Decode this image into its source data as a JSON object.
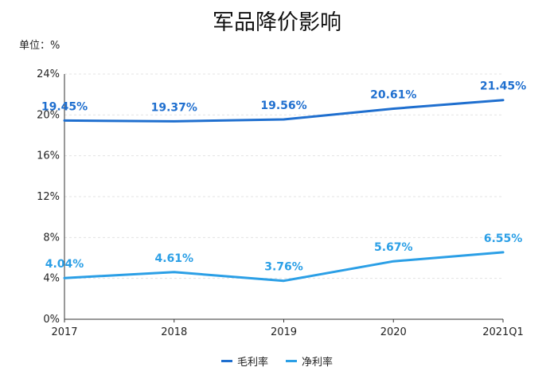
{
  "chart_data": {
    "type": "line",
    "title": "军品降价影响",
    "unit_label": "单位：%",
    "categories": [
      "2017",
      "2018",
      "2019",
      "2020",
      "2021Q1"
    ],
    "ylim": [
      0,
      24
    ],
    "yticks": [
      0,
      4,
      8,
      12,
      16,
      20,
      24
    ],
    "ytick_labels": [
      "0%",
      "4%",
      "8%",
      "12%",
      "16%",
      "20%",
      "24%"
    ],
    "grid": true,
    "legend_position": "bottom-center",
    "series": [
      {
        "name": "毛利率",
        "color": "#1f6fcf",
        "values": [
          19.45,
          19.37,
          19.56,
          20.61,
          21.45
        ],
        "labels": [
          "19.45%",
          "19.37%",
          "19.56%",
          "20.61%",
          "21.45%"
        ]
      },
      {
        "name": "净利率",
        "color": "#2b9fe6",
        "values": [
          4.04,
          4.61,
          3.76,
          5.67,
          6.55
        ],
        "labels": [
          "4.04%",
          "4.61%",
          "3.76%",
          "5.67%",
          "6.55%"
        ]
      }
    ]
  }
}
